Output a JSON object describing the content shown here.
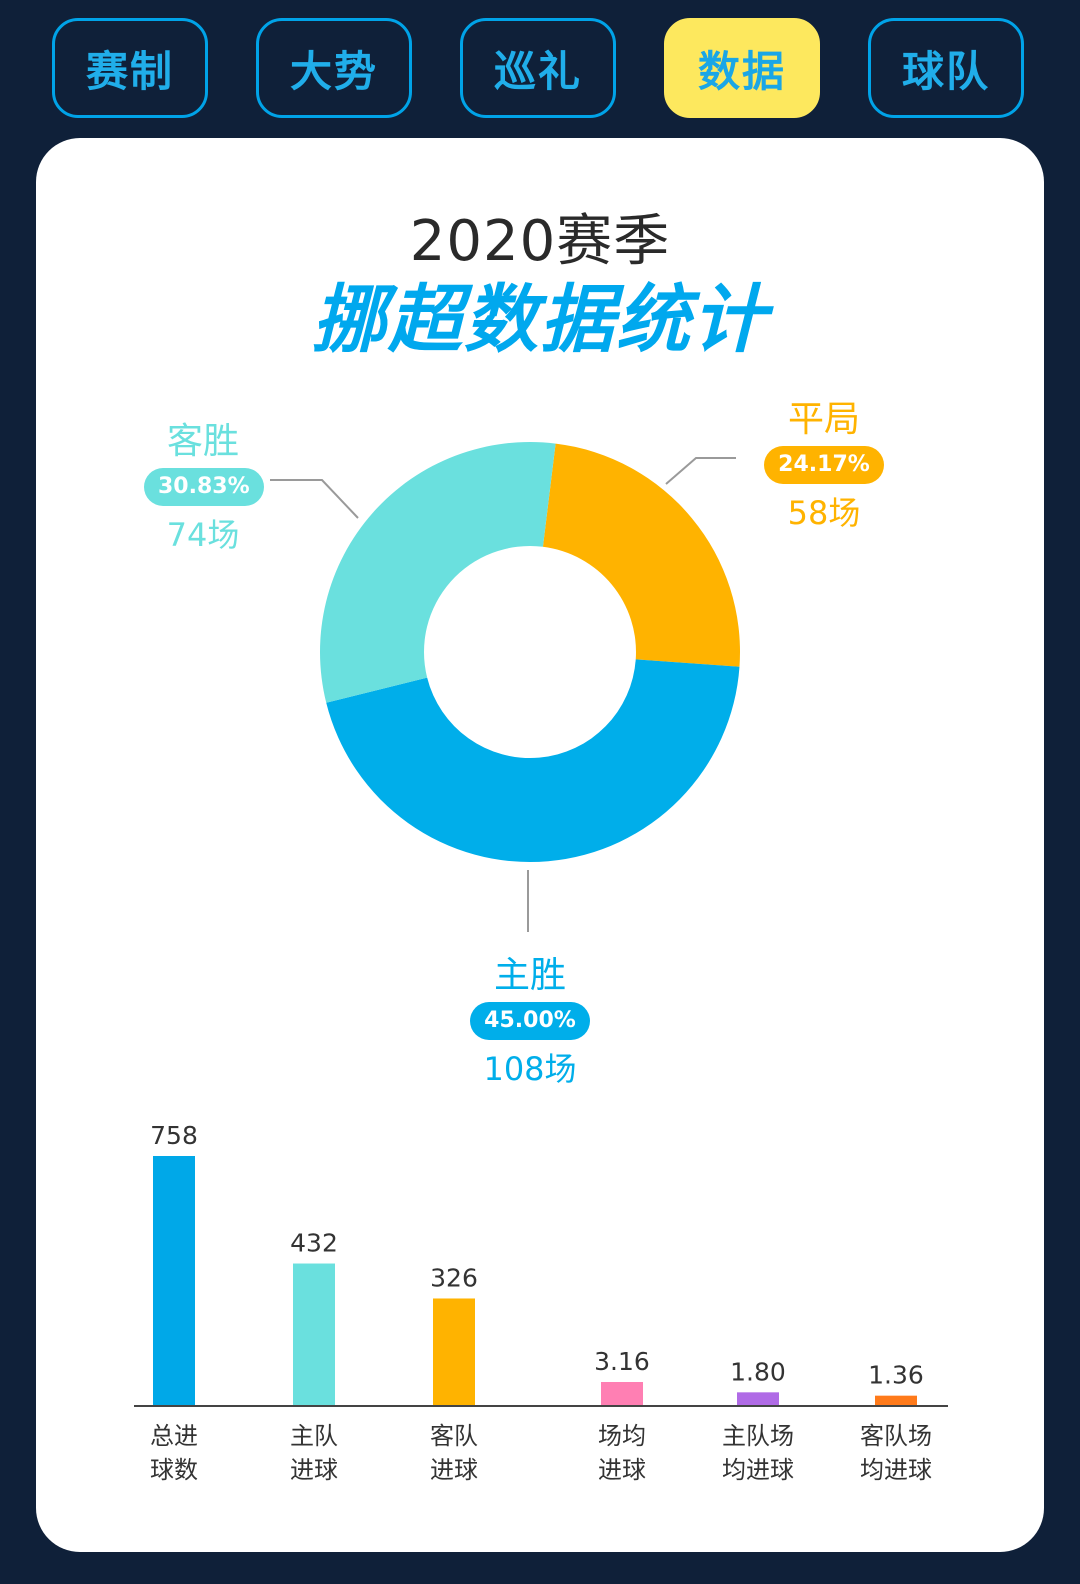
{
  "tabs": [
    {
      "label": "赛制",
      "active": false
    },
    {
      "label": "大势",
      "active": false
    },
    {
      "label": "巡礼",
      "active": false
    },
    {
      "label": "数据",
      "active": true
    },
    {
      "label": "球队",
      "active": false
    }
  ],
  "title": {
    "season": "2020赛季",
    "main": "挪超数据统计"
  },
  "colors": {
    "away": "#6ae0de",
    "draw": "#ffb300",
    "home": "#00aeea"
  },
  "chart_data": [
    {
      "type": "pie",
      "slices": [
        {
          "key": "away",
          "name": "客胜",
          "percent": 30.83,
          "percent_label": "30.83%",
          "count": 74,
          "count_label": "74场",
          "color": "#6ae0de"
        },
        {
          "key": "draw",
          "name": "平局",
          "percent": 24.17,
          "percent_label": "24.17%",
          "count": 58,
          "count_label": "58场",
          "color": "#ffb300"
        },
        {
          "key": "home",
          "name": "主胜",
          "percent": 45.0,
          "percent_label": "45.00%",
          "count": 108,
          "count_label": "108场",
          "color": "#00aeea"
        }
      ]
    },
    {
      "type": "bar",
      "groups": [
        {
          "bars": [
            {
              "label": [
                "总进",
                "球数"
              ],
              "value": 758,
              "value_label": "758",
              "color": "#00a8e8"
            },
            {
              "label": [
                "主队",
                "进球"
              ],
              "value": 432,
              "value_label": "432",
              "color": "#6ae0de"
            },
            {
              "label": [
                "客队",
                "进球"
              ],
              "value": 326,
              "value_label": "326",
              "color": "#ffb300"
            }
          ]
        },
        {
          "bars": [
            {
              "label": [
                "场均",
                "进球"
              ],
              "value": 3.16,
              "value_label": "3.16",
              "color": "#ff7fb3"
            },
            {
              "label": [
                "主队场",
                "均进球"
              ],
              "value": 1.8,
              "value_label": "1.80",
              "color": "#b06be6"
            },
            {
              "label": [
                "客队场",
                "均进球"
              ],
              "value": 1.36,
              "value_label": "1.36",
              "color": "#ff7a1a"
            }
          ]
        }
      ]
    }
  ]
}
